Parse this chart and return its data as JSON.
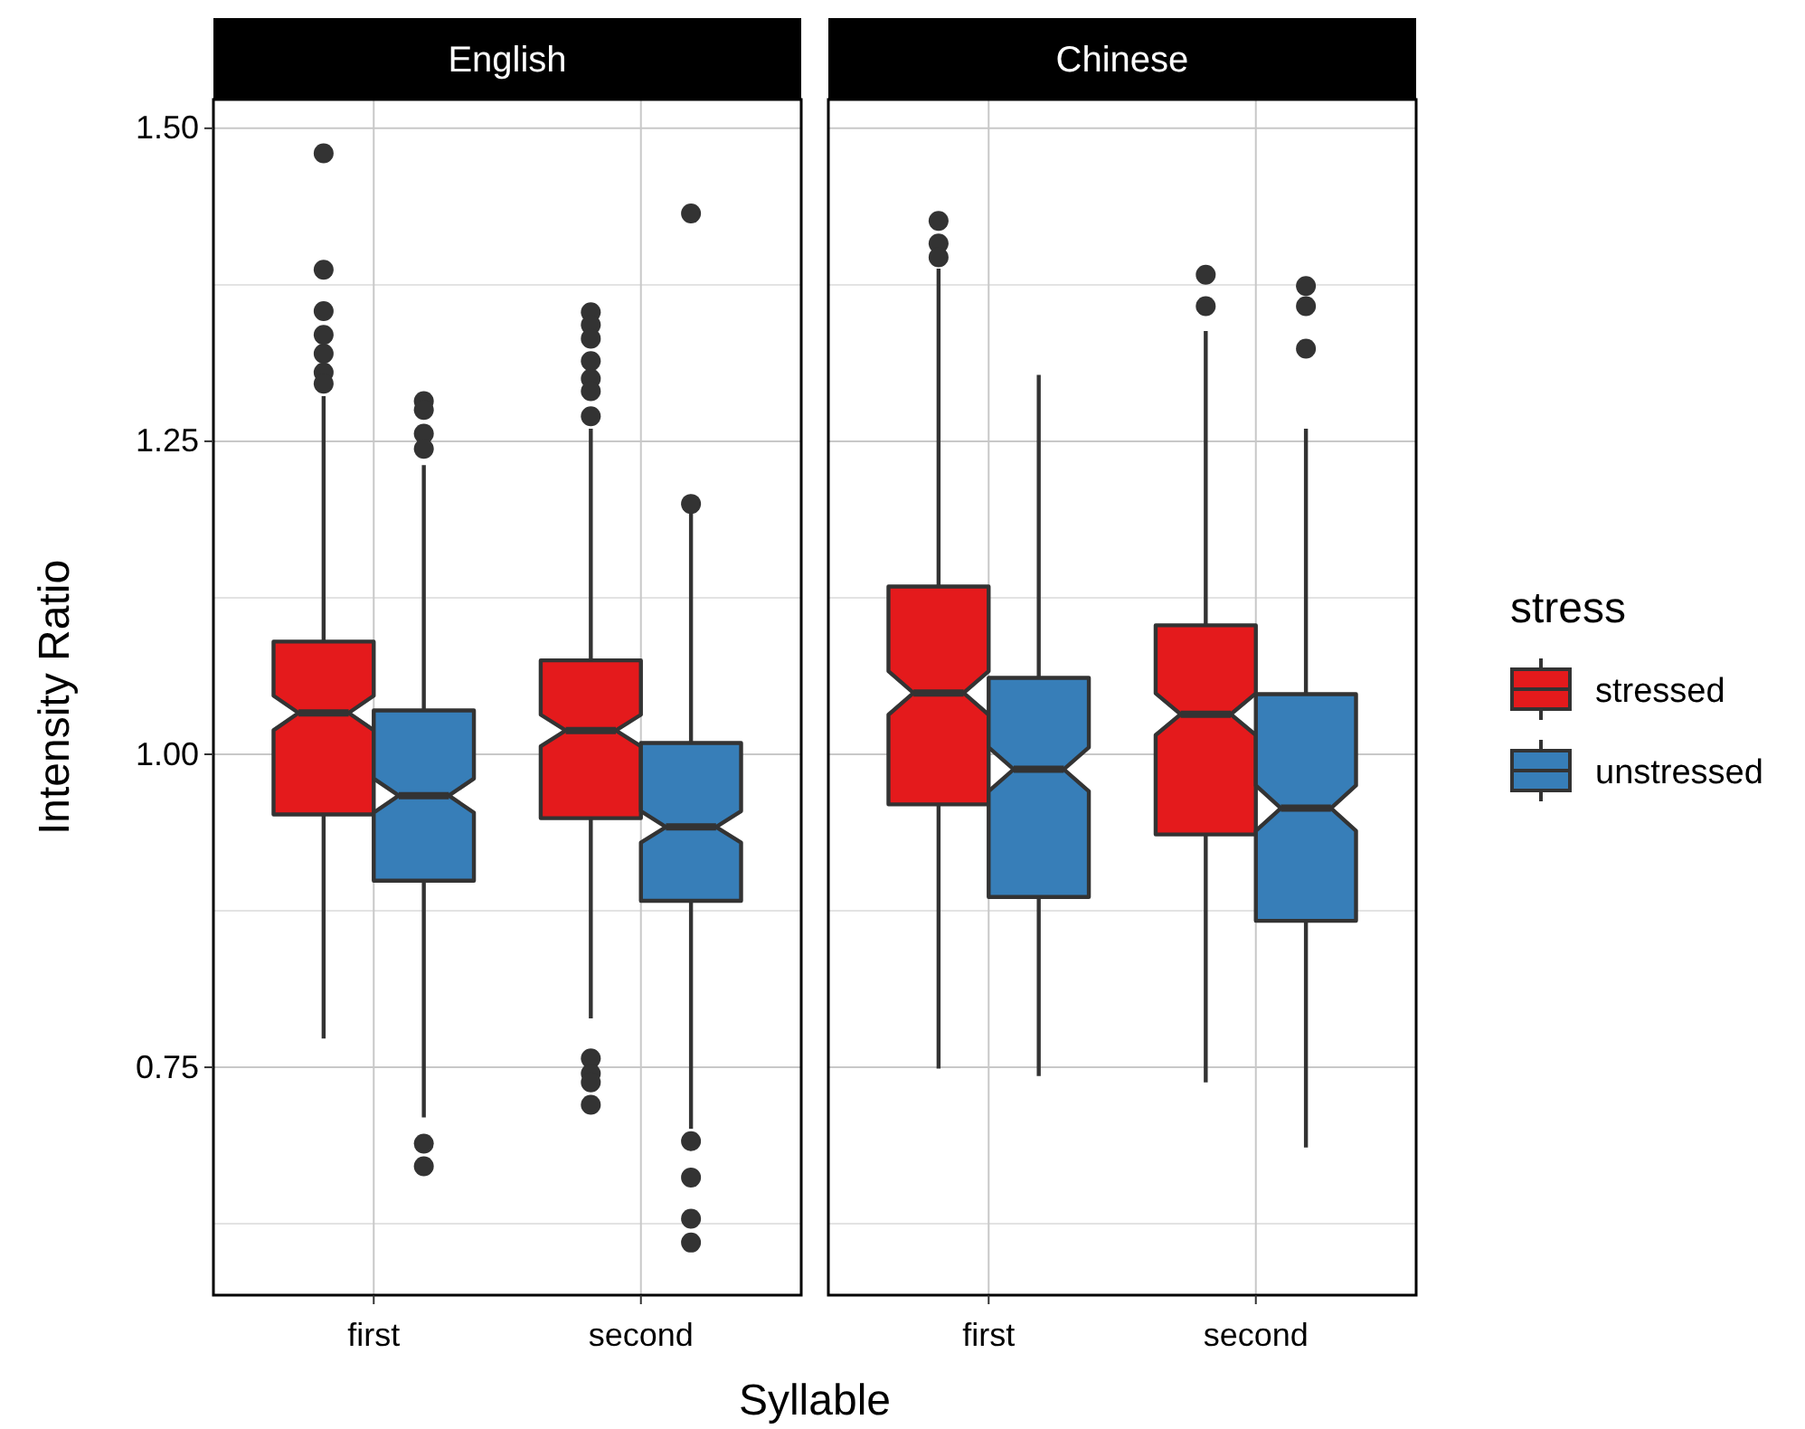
{
  "chart_data": [
    {
      "type": "box",
      "title": "English",
      "xlabel": "Syllable",
      "ylabel": "Intensity Ratio",
      "categories": [
        "first",
        "second"
      ],
      "ylim": [
        0.568,
        1.523
      ],
      "yticks": [
        {
          "value": 0.75,
          "label": "0.75"
        },
        {
          "value": 1,
          "label": "1.00"
        },
        {
          "value": 1.25,
          "label": "1.25"
        },
        {
          "value": 1.5,
          "label": "1.50"
        }
      ],
      "grid": true,
      "legend": false,
      "series": [
        {
          "color": "#e41a1c",
          "boxes": [
            {
              "low": 0.773,
              "q1": 0.952,
              "median": 1.033,
              "q3": 1.09,
              "high": 1.286,
              "outliers": [
                1.48,
                1.387,
                1.354,
                1.335,
                1.32,
                1.305,
                1.296
              ]
            },
            {
              "low": 0.789,
              "q1": 0.949,
              "median": 1.019,
              "q3": 1.075,
              "high": 1.26,
              "outliers": [
                1.353,
                1.343,
                1.332,
                1.314,
                1.3,
                1.29,
                1.27,
                0.757,
                0.745,
                0.738,
                0.72
              ]
            }
          ]
        },
        {
          "color": "#377eb8",
          "boxes": [
            {
              "low": 0.71,
              "q1": 0.899,
              "median": 0.967,
              "q3": 1.035,
              "high": 1.231,
              "outliers": [
                1.282,
                1.275,
                1.256,
                1.244,
                0.689,
                0.671
              ]
            },
            {
              "low": 0.701,
              "q1": 0.883,
              "median": 0.942,
              "q3": 1.009,
              "high": 1.195,
              "outliers": [
                1.432,
                1.2,
                0.691,
                0.662,
                0.629,
                0.61
              ]
            }
          ]
        }
      ]
    },
    {
      "type": "box",
      "title": "Chinese",
      "categories": [
        "first",
        "second"
      ],
      "ylim": [
        0.568,
        1.523
      ],
      "yticks": [
        {
          "value": 0.75,
          "label": null
        },
        {
          "value": 1,
          "label": null
        },
        {
          "value": 1.25,
          "label": null
        },
        {
          "value": 1.5,
          "label": null
        }
      ],
      "tick_labels": "x",
      "grid": true,
      "legend": "right",
      "legend_title": "stress",
      "series": [
        {
          "name": "stressed",
          "color": "#e41a1c",
          "boxes": [
            {
              "low": 0.749,
              "q1": 0.96,
              "median": 1.049,
              "q3": 1.134,
              "high": 1.388,
              "outliers": [
                1.426,
                1.408,
                1.397
              ]
            },
            {
              "low": 0.738,
              "q1": 0.936,
              "median": 1.032,
              "q3": 1.103,
              "high": 1.338,
              "outliers": [
                1.383,
                1.358
              ]
            }
          ]
        },
        {
          "name": "unstressed",
          "color": "#377eb8",
          "boxes": [
            {
              "low": 0.743,
              "q1": 0.886,
              "median": 0.988,
              "q3": 1.061,
              "high": 1.303
            },
            {
              "low": 0.686,
              "q1": 0.867,
              "median": 0.957,
              "q3": 1.048,
              "high": 1.26,
              "outliers": [
                1.374,
                1.358,
                1.324
              ]
            }
          ]
        }
      ]
    }
  ]
}
